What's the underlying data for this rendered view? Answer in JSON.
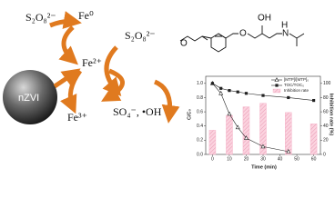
{
  "diagram": {
    "persulfate_left": "S₂O₈²⁻",
    "fe0": "Fe⁰",
    "particle": "nZVI",
    "fe2": "Fe²⁺",
    "persulfate_right": "S₂O₈²⁻",
    "fe3": "Fe³⁺",
    "radicals": "SO₄⁻, •OH",
    "molecule": {
      "o_ether1": "O",
      "o_ether2": "O",
      "oh": "OH",
      "n": "N",
      "h": "H"
    }
  },
  "chart_data": {
    "type": "combo",
    "xlabel": "Time (min)",
    "ylabel": "C/C₀",
    "y2label": "Inhibition rate (%)",
    "xlim": [
      -4,
      64
    ],
    "xticks": [
      0,
      10,
      20,
      30,
      40,
      50,
      60
    ],
    "ylim": [
      0,
      1.1
    ],
    "yticks": [
      {
        "value": 0,
        "label": "0.0"
      },
      {
        "value": 0.2,
        "label": "0.2"
      },
      {
        "value": 0.4,
        "label": "0.4"
      },
      {
        "value": 0.6,
        "label": "0.6"
      },
      {
        "value": 0.8,
        "label": "0.8"
      },
      {
        "value": 1,
        "label": "1.0"
      }
    ],
    "y2lim": [
      0,
      110
    ],
    "y2ticks": [
      0,
      20,
      40,
      60,
      80,
      100
    ],
    "legend": "upper right",
    "series": [
      {
        "name": "[MTP]/[MTP]₀",
        "type": "line",
        "marker": "triangle",
        "color": "#222222",
        "x": [
          0,
          5,
          10,
          15,
          20,
          30,
          45
        ],
        "values": [
          1.0,
          0.86,
          0.57,
          0.38,
          0.23,
          0.11,
          0.04
        ]
      },
      {
        "name": "TOC/TOC₀",
        "type": "line",
        "marker": "square",
        "color": "#222222",
        "x": [
          0,
          5,
          10,
          15,
          20,
          30,
          45,
          60
        ],
        "values": [
          1.0,
          0.93,
          0.9,
          0.88,
          0.86,
          0.83,
          0.8,
          0.76
        ]
      },
      {
        "name": "Inhibition rate",
        "type": "bar",
        "axis": "y2",
        "color": "#f6b3c9",
        "x": [
          0,
          10,
          20,
          30,
          45,
          60
        ],
        "values": [
          34,
          55,
          67,
          72,
          59,
          43
        ]
      }
    ]
  }
}
